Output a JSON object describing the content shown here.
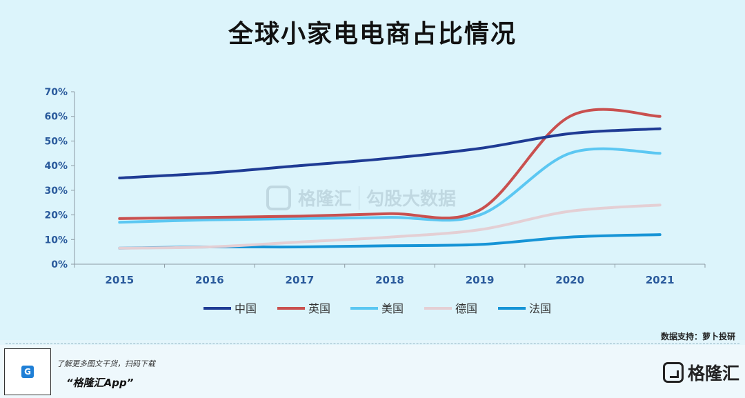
{
  "title": "全球小家电电商占比情况",
  "source_text": "数据支持：萝卜投研",
  "watermark": {
    "left_text": "格隆汇",
    "right_text": "勾股大数据"
  },
  "footer": {
    "line1": "了解更多图文干货，扫码下载",
    "line2": "“格隆汇App”",
    "brand": "格隆汇",
    "qr_badge_icon": "G"
  },
  "chart_data": {
    "type": "line",
    "categories": [
      "2015",
      "2016",
      "2017",
      "2018",
      "2019",
      "2020",
      "2021"
    ],
    "y_ticks": [
      "0%",
      "10%",
      "20%",
      "30%",
      "40%",
      "50%",
      "60%",
      "70%"
    ],
    "ylim": [
      0,
      70
    ],
    "grid": false,
    "legend_position": "bottom",
    "series": [
      {
        "name": "中国",
        "color": "#1f3b94",
        "values": [
          35,
          37,
          40,
          43,
          47,
          53,
          55
        ]
      },
      {
        "name": "英国",
        "color": "#c9504f",
        "values": [
          18.5,
          19,
          19.5,
          20.5,
          22,
          60,
          60
        ]
      },
      {
        "name": "美国",
        "color": "#5bc7f2",
        "values": [
          17,
          18,
          18.5,
          19,
          20,
          45,
          45
        ]
      },
      {
        "name": "德国",
        "color": "#e4cfd4",
        "values": [
          6.5,
          7,
          9,
          11,
          14,
          21.5,
          24
        ]
      },
      {
        "name": "法国",
        "color": "#1694d6",
        "values": [
          6.5,
          7,
          7,
          7.5,
          8,
          11,
          12
        ]
      }
    ]
  }
}
